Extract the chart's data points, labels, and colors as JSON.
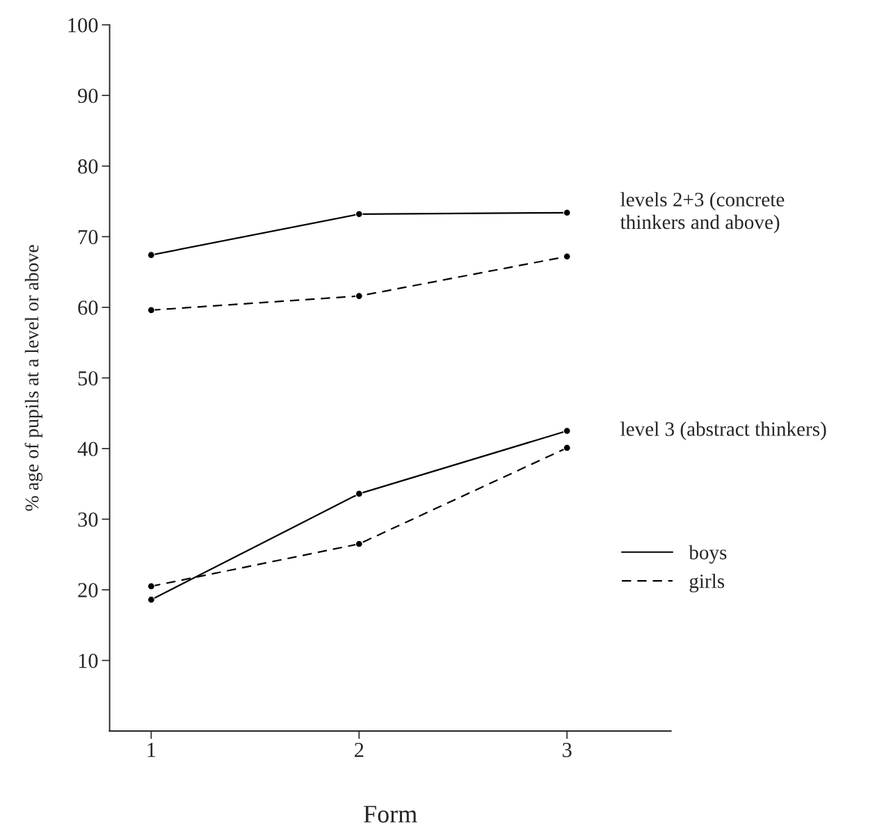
{
  "chart_data": {
    "type": "line",
    "xlabel": "Form",
    "ylabel": "% age of pupils at a level or above",
    "x": [
      1,
      2,
      3
    ],
    "xlim": [
      0.8,
      3.5
    ],
    "xticks": [
      1,
      2,
      3
    ],
    "ylim": [
      0,
      100
    ],
    "yticks": [
      10,
      20,
      30,
      40,
      50,
      60,
      70,
      80,
      90,
      100
    ],
    "series": [
      {
        "name": "boys",
        "color": "#000000",
        "line_style": "solid",
        "values": [
          67.4,
          73.2,
          73.4
        ]
      },
      {
        "name": "girls",
        "color": "#000000",
        "line_style": "dashed",
        "values": [
          59.6,
          61.6,
          67.2
        ]
      },
      {
        "color": "#000000",
        "line_style": "solid",
        "values": [
          18.6,
          33.6,
          42.5
        ]
      },
      {
        "color": "#000000",
        "line_style": "dashed",
        "values": [
          20.5,
          26.5,
          40.1
        ]
      }
    ],
    "annotations": [
      {
        "text": "levels 2+3 (concrete\nthinkers and above)",
        "x": 3,
        "y": 73.4
      },
      {
        "text": "level 3 (abstract thinkers)",
        "x": 3,
        "y": 42.5
      }
    ],
    "marker": "circle",
    "grid": false,
    "legend": "right"
  }
}
